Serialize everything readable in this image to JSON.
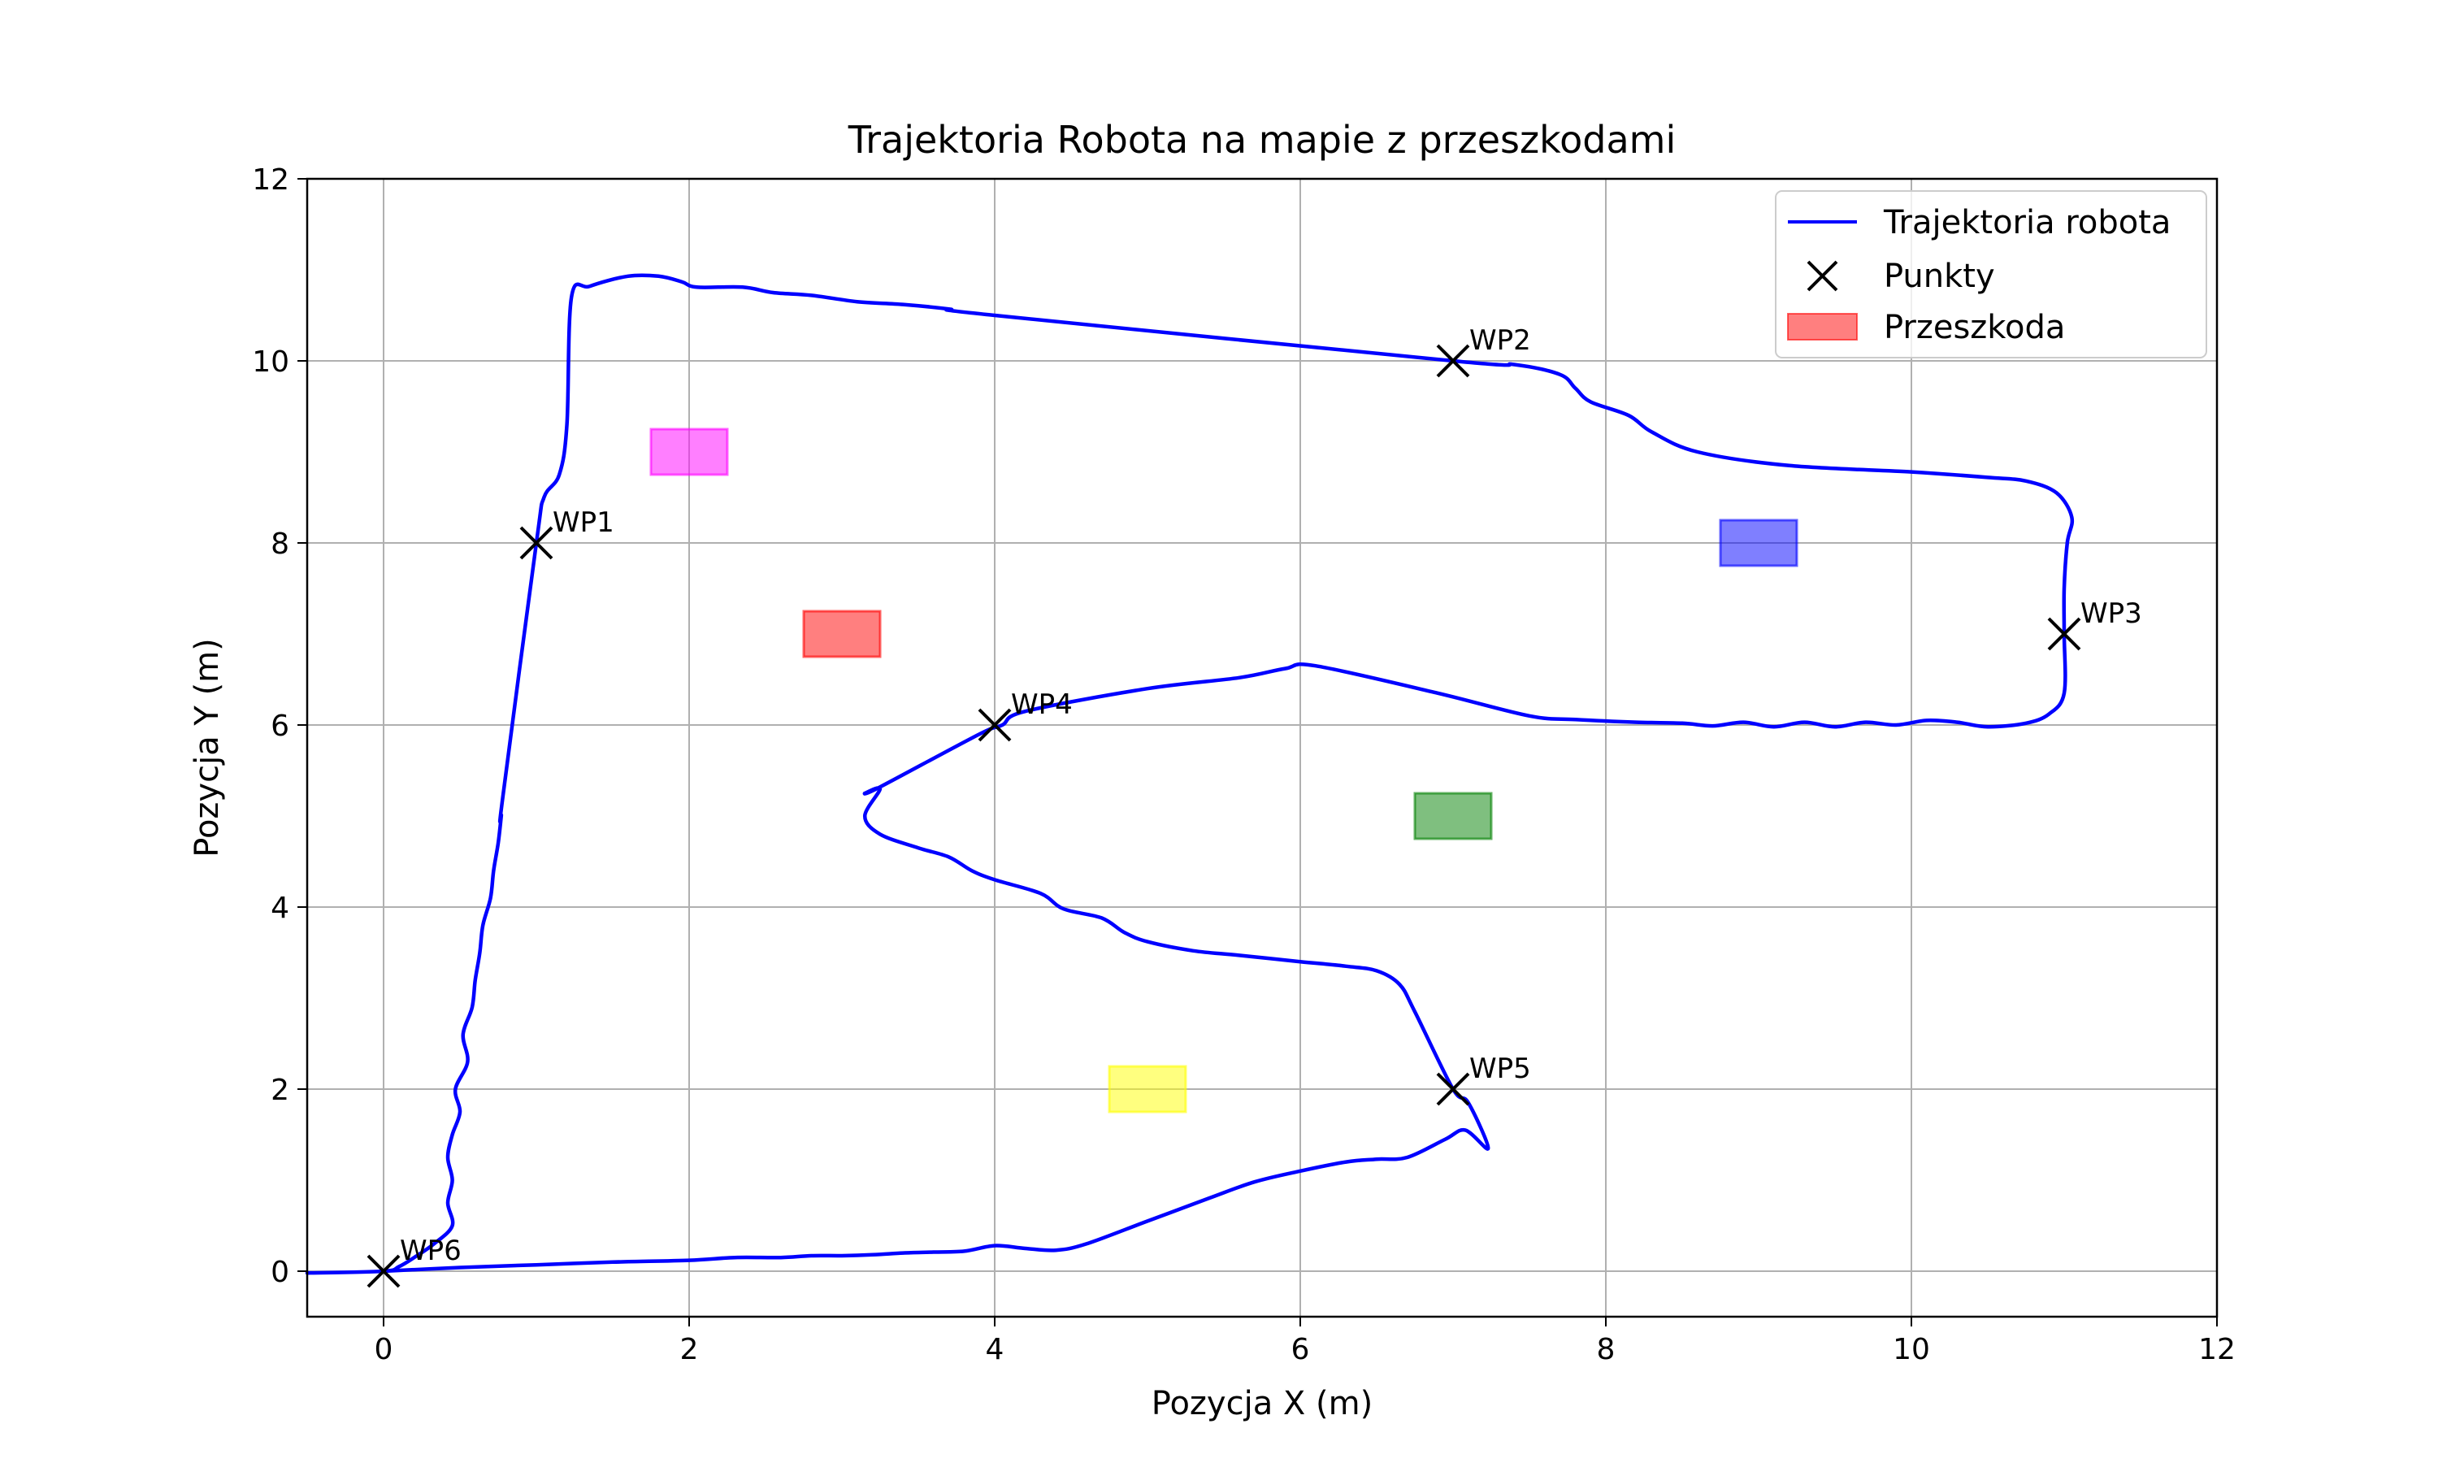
{
  "chart_data": {
    "type": "line",
    "title": "Trajektoria Robota na mapie z przeszkodami",
    "xlabel": "Pozycja X (m)",
    "ylabel": "Pozycja Y (m)",
    "xlim": [
      -0.5,
      12
    ],
    "ylim": [
      -0.5,
      12
    ],
    "xticks": [
      0,
      2,
      4,
      6,
      8,
      10,
      12
    ],
    "yticks": [
      0,
      2,
      4,
      6,
      8,
      10,
      12
    ],
    "tick_labels_x": [
      "0",
      "2",
      "4",
      "6",
      "8",
      "10",
      "12"
    ],
    "tick_labels_y": [
      "0",
      "2",
      "4",
      "6",
      "8",
      "10",
      "12"
    ],
    "grid": true,
    "legend_position": "top-right",
    "legend": [
      {
        "label": "Trajektoria robota",
        "kind": "line",
        "color": "#0000ff"
      },
      {
        "label": "Punkty",
        "kind": "marker",
        "color": "#000000"
      },
      {
        "label": "Przeszkoda",
        "kind": "patch",
        "color": "#ff0000"
      }
    ],
    "trajectory": {
      "name": "Trajektoria robota",
      "color": "#0000ff",
      "points": [
        [
          -0.5,
          -0.02
        ],
        [
          0,
          0
        ],
        [
          0.1,
          0.05
        ],
        [
          0.2,
          0.15
        ],
        [
          0.33,
          0.3
        ],
        [
          0.45,
          0.5
        ],
        [
          0.42,
          0.75
        ],
        [
          0.45,
          1.0
        ],
        [
          0.42,
          1.25
        ],
        [
          0.45,
          1.5
        ],
        [
          0.5,
          1.75
        ],
        [
          0.47,
          2.0
        ],
        [
          0.55,
          2.3
        ],
        [
          0.52,
          2.6
        ],
        [
          0.58,
          2.9
        ],
        [
          0.6,
          3.2
        ],
        [
          0.63,
          3.5
        ],
        [
          0.65,
          3.8
        ],
        [
          0.7,
          4.1
        ],
        [
          0.72,
          4.4
        ],
        [
          0.75,
          4.7
        ],
        [
          0.77,
          5.0
        ],
        [
          0.78,
          5.2
        ],
        [
          1.0,
          8.0
        ],
        [
          1.05,
          8.5
        ],
        [
          1.15,
          8.75
        ],
        [
          1.2,
          9.3
        ],
        [
          1.23,
          10.7
        ],
        [
          1.35,
          10.82
        ],
        [
          1.6,
          10.93
        ],
        [
          1.8,
          10.93
        ],
        [
          1.95,
          10.87
        ],
        [
          2.05,
          10.81
        ],
        [
          2.35,
          10.81
        ],
        [
          2.55,
          10.75
        ],
        [
          2.8,
          10.72
        ],
        [
          3.1,
          10.65
        ],
        [
          3.4,
          10.62
        ],
        [
          3.7,
          10.57
        ],
        [
          4.0,
          10.5
        ],
        [
          7.0,
          10.0
        ],
        [
          7.4,
          9.96
        ],
        [
          7.7,
          9.85
        ],
        [
          7.8,
          9.7
        ],
        [
          7.9,
          9.55
        ],
        [
          8.15,
          9.4
        ],
        [
          8.3,
          9.22
        ],
        [
          8.6,
          9.0
        ],
        [
          9.2,
          8.85
        ],
        [
          10.0,
          8.78
        ],
        [
          10.5,
          8.72
        ],
        [
          10.75,
          8.68
        ],
        [
          10.95,
          8.55
        ],
        [
          11.05,
          8.28
        ],
        [
          11.02,
          8.0
        ],
        [
          11.0,
          7.5
        ],
        [
          11.0,
          7.0
        ],
        [
          11.0,
          6.35
        ],
        [
          10.9,
          6.12
        ],
        [
          10.75,
          6.02
        ],
        [
          10.5,
          5.98
        ],
        [
          10.3,
          6.03
        ],
        [
          10.1,
          6.05
        ],
        [
          9.9,
          6.0
        ],
        [
          9.7,
          6.03
        ],
        [
          9.5,
          5.98
        ],
        [
          9.3,
          6.03
        ],
        [
          9.1,
          5.98
        ],
        [
          8.9,
          6.03
        ],
        [
          8.7,
          5.99
        ],
        [
          8.5,
          6.02
        ],
        [
          8.2,
          6.03
        ],
        [
          7.8,
          6.06
        ],
        [
          7.5,
          6.1
        ],
        [
          6.9,
          6.35
        ],
        [
          6.1,
          6.65
        ],
        [
          5.9,
          6.62
        ],
        [
          5.6,
          6.52
        ],
        [
          5.0,
          6.4
        ],
        [
          4.2,
          6.15
        ],
        [
          4.05,
          6.0
        ],
        [
          3.9,
          5.9
        ],
        [
          3.25,
          5.32
        ],
        [
          3.15,
          5.25
        ],
        [
          3.25,
          5.3
        ],
        [
          3.15,
          5.0
        ],
        [
          3.25,
          4.8
        ],
        [
          3.5,
          4.65
        ],
        [
          3.7,
          4.55
        ],
        [
          3.85,
          4.4
        ],
        [
          4.0,
          4.3
        ],
        [
          4.3,
          4.15
        ],
        [
          4.45,
          3.98
        ],
        [
          4.7,
          3.88
        ],
        [
          4.85,
          3.72
        ],
        [
          5.0,
          3.62
        ],
        [
          5.3,
          3.52
        ],
        [
          5.6,
          3.47
        ],
        [
          6.0,
          3.4
        ],
        [
          6.3,
          3.35
        ],
        [
          6.5,
          3.3
        ],
        [
          6.65,
          3.15
        ],
        [
          6.75,
          2.85
        ],
        [
          7.0,
          2.0
        ],
        [
          7.1,
          1.85
        ],
        [
          7.23,
          1.35
        ],
        [
          7.08,
          1.55
        ],
        [
          6.95,
          1.45
        ],
        [
          6.7,
          1.25
        ],
        [
          6.5,
          1.23
        ],
        [
          6.3,
          1.2
        ],
        [
          6.0,
          1.1
        ],
        [
          5.7,
          0.98
        ],
        [
          5.4,
          0.8
        ],
        [
          5.0,
          0.55
        ],
        [
          4.6,
          0.3
        ],
        [
          4.4,
          0.23
        ],
        [
          4.2,
          0.25
        ],
        [
          4.0,
          0.28
        ],
        [
          3.8,
          0.22
        ],
        [
          3.6,
          0.21
        ],
        [
          3.4,
          0.2
        ],
        [
          3.2,
          0.18
        ],
        [
          3.0,
          0.17
        ],
        [
          2.8,
          0.17
        ],
        [
          2.6,
          0.15
        ],
        [
          2.3,
          0.15
        ],
        [
          2.0,
          0.12
        ],
        [
          1.5,
          0.1
        ],
        [
          1.0,
          0.07
        ],
        [
          0.5,
          0.04
        ],
        [
          0.0,
          0.0
        ]
      ]
    },
    "waypoints": [
      {
        "label": "WP1",
        "x": 1,
        "y": 8
      },
      {
        "label": "WP2",
        "x": 7,
        "y": 10
      },
      {
        "label": "WP3",
        "x": 11,
        "y": 7
      },
      {
        "label": "WP4",
        "x": 4,
        "y": 6
      },
      {
        "label": "WP5",
        "x": 7,
        "y": 2
      },
      {
        "label": "WP6",
        "x": 0,
        "y": 0
      }
    ],
    "obstacles": [
      {
        "x": 2,
        "y": 9,
        "width": 0.5,
        "height": 0.5,
        "color": "#ff00ff"
      },
      {
        "x": 3,
        "y": 7,
        "width": 0.5,
        "height": 0.5,
        "color": "#ff0000"
      },
      {
        "x": 9,
        "y": 8,
        "width": 0.5,
        "height": 0.5,
        "color": "#0000ff"
      },
      {
        "x": 7,
        "y": 5,
        "width": 0.5,
        "height": 0.5,
        "color": "#008000"
      },
      {
        "x": 5,
        "y": 2,
        "width": 0.5,
        "height": 0.5,
        "color": "#ffff00"
      }
    ]
  }
}
